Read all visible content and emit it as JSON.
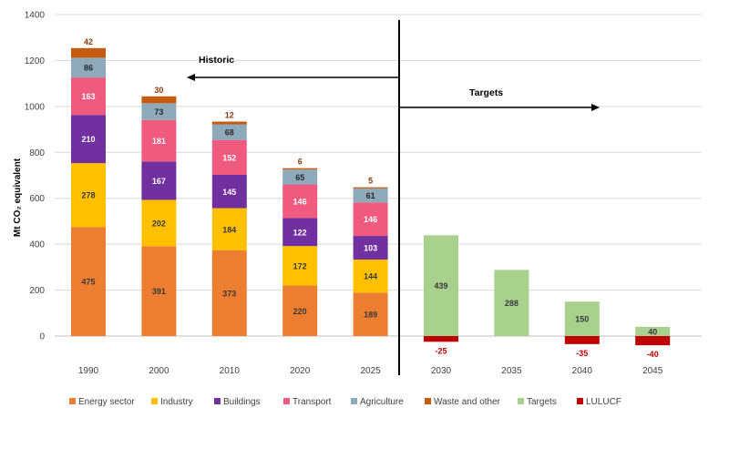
{
  "chart_data": {
    "type": "bar",
    "stacked": true,
    "ylabel": "Mt CO₂ equivalent",
    "ylim": [
      -50,
      1400
    ],
    "yticks": [
      0,
      200,
      400,
      600,
      800,
      1000,
      1200,
      1400
    ],
    "grid": true,
    "legend_position": "bottom",
    "categories": [
      "1990",
      "2000",
      "2010",
      "2020",
      "2025",
      "2030",
      "2035",
      "2040",
      "2045"
    ],
    "series": [
      {
        "name": "Energy sector",
        "color": "#ED7D31",
        "label_color": "#3a3a3a",
        "values": [
          475,
          391,
          373,
          220,
          189,
          null,
          null,
          null,
          null
        ]
      },
      {
        "name": "Industry",
        "color": "#FFC000",
        "label_color": "#3a3a3a",
        "values": [
          278,
          202,
          184,
          172,
          144,
          null,
          null,
          null,
          null
        ]
      },
      {
        "name": "Buildings",
        "color": "#7030A0",
        "label_color": "#ffffff",
        "values": [
          210,
          167,
          145,
          122,
          103,
          null,
          null,
          null,
          null
        ]
      },
      {
        "name": "Transport",
        "color": "#F05A7E",
        "label_color": "#ffffff",
        "values": [
          163,
          181,
          152,
          146,
          146,
          null,
          null,
          null,
          null
        ]
      },
      {
        "name": "Agriculture",
        "color": "#8EA9B9",
        "label_color": "#2a2a2a",
        "values": [
          86,
          73,
          68,
          65,
          61,
          null,
          null,
          null,
          null
        ]
      },
      {
        "name": "Waste and other",
        "color": "#C55A11",
        "label_color": "#8B3A0E",
        "label_outside": true,
        "values": [
          42,
          30,
          12,
          6,
          5,
          null,
          null,
          null,
          null
        ]
      },
      {
        "name": "Targets",
        "color": "#A9D18E",
        "label_color": "#3a3a3a",
        "values": [
          null,
          null,
          null,
          null,
          null,
          439,
          288,
          150,
          40
        ]
      },
      {
        "name": "LULUCF",
        "color": "#C00000",
        "label_color": "#C00000",
        "label_outside": true,
        "values": [
          null,
          null,
          null,
          null,
          null,
          -25,
          null,
          -35,
          -40
        ]
      }
    ],
    "annotations": {
      "historic": "Historic",
      "targets": "Targets"
    }
  }
}
